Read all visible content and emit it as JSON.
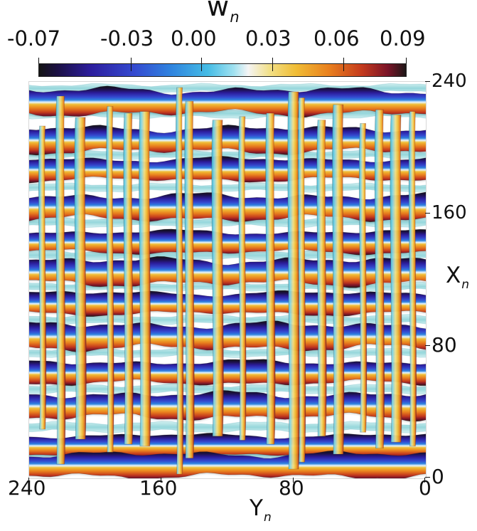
{
  "chart_data": {
    "type": "heatmap",
    "title": "w",
    "title_subscript": "n",
    "colorbar": {
      "ticks": [
        "-0.07",
        "-0.03",
        "0.00",
        "0.03",
        "0.06",
        "0.09"
      ],
      "range": [
        -0.07,
        0.09
      ],
      "colors": [
        {
          "at": 0.0,
          "color": "#141414"
        },
        {
          "at": 0.05,
          "color": "#1b1044"
        },
        {
          "at": 0.14,
          "color": "#2c1d9d"
        },
        {
          "at": 0.26,
          "color": "#344ad0"
        },
        {
          "at": 0.36,
          "color": "#2f84df"
        },
        {
          "at": 0.46,
          "color": "#45bce5"
        },
        {
          "at": 0.53,
          "color": "#9fe1f0"
        },
        {
          "at": 0.57,
          "color": "#f5f5f5"
        },
        {
          "at": 0.63,
          "color": "#f2df85"
        },
        {
          "at": 0.7,
          "color": "#f0bd36"
        },
        {
          "at": 0.79,
          "color": "#e9801e"
        },
        {
          "at": 0.88,
          "color": "#c43a1d"
        },
        {
          "at": 0.95,
          "color": "#7b1428"
        },
        {
          "at": 1.0,
          "color": "#1d1717"
        }
      ]
    },
    "x_axis": {
      "label": "Y",
      "label_subscript": "n",
      "ticks": [
        "240",
        "160",
        "80",
        "0"
      ],
      "tick_values": [
        240,
        160,
        80,
        0
      ],
      "range": [
        240,
        0
      ]
    },
    "y_axis": {
      "label": "X",
      "label_subscript": "n",
      "ticks": [
        "240",
        "160",
        "80",
        "0"
      ],
      "tick_values": [
        240,
        160,
        80,
        0
      ],
      "range": [
        0,
        240
      ]
    },
    "bands": {
      "y_values": [
        228,
        205,
        187,
        164,
        143,
        125,
        106,
        86,
        64,
        44,
        20,
        8
      ],
      "amplitudes": [
        1.0,
        0.95,
        0.65,
        0.95,
        0.6,
        1.0,
        0.62,
        1.0,
        0.7,
        0.98,
        0.55,
        0.85
      ]
    },
    "vertical_structures": {
      "y_values": [
        232,
        221,
        209,
        191,
        180,
        170,
        149,
        143,
        126,
        111,
        94,
        80,
        75,
        63,
        53,
        38,
        28,
        18,
        8
      ],
      "heights": [
        0.55,
        0.9,
        0.65,
        0.78,
        0.7,
        0.72,
        1.0,
        0.84,
        0.62,
        0.66,
        0.7,
        0.95,
        0.88,
        0.62,
        0.8,
        0.58,
        0.74,
        0.68,
        0.72
      ]
    },
    "pale_bands": {
      "y_values": [
        236,
        221,
        196,
        176,
        155,
        135,
        116,
        96,
        76,
        54,
        31,
        14
      ],
      "amplitudes": [
        0.7,
        0.8,
        0.72,
        0.65,
        0.76,
        0.82,
        0.66,
        0.75,
        0.69,
        0.74,
        0.8,
        0.62
      ]
    },
    "grid": false
  }
}
